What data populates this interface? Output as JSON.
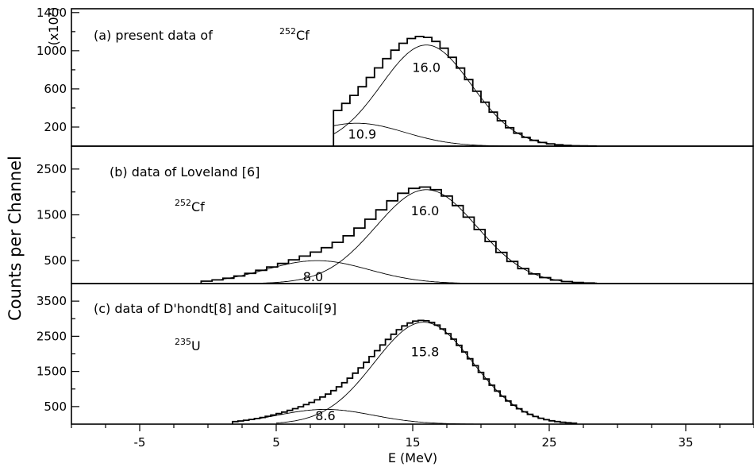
{
  "figure": {
    "ylabel": "Counts per Channel",
    "xlabel": "E (MeV)",
    "scale_note": "(x10²)"
  },
  "chart_data": [
    {
      "type": "line",
      "panel_label": "(a) present data of",
      "isotope": {
        "mass": "252",
        "symbol": "Cf"
      },
      "title": "(a) present data of ²⁵²Cf",
      "xlim": [
        -10,
        40
      ],
      "ylim": [
        0,
        1440
      ],
      "yticks": [
        200,
        600,
        1000,
        1400
      ],
      "yticklabels": [
        "200",
        "600",
        "1000",
        "1400"
      ],
      "grid": false,
      "histogram": {
        "x_start": 9.2,
        "x_end": 28.5,
        "bin_width": 0.6,
        "components": [
          {
            "amplitude": 1060,
            "center": 16.0,
            "sigma": 3.3
          },
          {
            "amplitude": 240,
            "center": 10.9,
            "sigma": 3.5
          }
        ]
      },
      "series": [
        {
          "amplitude": 1060,
          "center": 16.0,
          "sigma": 3.3,
          "x_start": 9.2,
          "x_end": 27.0,
          "annotation": "16.0",
          "annotation_at": [
            16.0,
            820
          ]
        },
        {
          "amplitude": 240,
          "center": 10.9,
          "sigma": 3.5,
          "x_start": 9.2,
          "x_end": 24.0,
          "annotation": "10.9",
          "annotation_at": [
            11.3,
            120
          ]
        }
      ]
    },
    {
      "type": "line",
      "panel_label": "(b) data of Loveland [6]",
      "isotope": {
        "mass": "252",
        "symbol": "Cf"
      },
      "title": "(b) data of Loveland [6]",
      "xlim": [
        -10,
        40
      ],
      "ylim": [
        0,
        3000
      ],
      "yticks": [
        500,
        1500,
        2500
      ],
      "yticklabels": [
        "500",
        "1500",
        "2500"
      ],
      "grid": false,
      "histogram": {
        "x_start": -0.5,
        "x_end": 28.5,
        "bin_width": 0.8,
        "components": [
          {
            "amplitude": 2050,
            "center": 16.0,
            "sigma": 3.7
          },
          {
            "amplitude": 500,
            "center": 8.0,
            "sigma": 3.8
          }
        ]
      },
      "series": [
        {
          "amplitude": 2050,
          "center": 16.0,
          "sigma": 3.7,
          "x_start": 3.0,
          "x_end": 28.0,
          "annotation": "16.0",
          "annotation_at": [
            15.9,
            1580
          ]
        },
        {
          "amplitude": 500,
          "center": 8.0,
          "sigma": 3.8,
          "x_start": 1.0,
          "x_end": 20.0,
          "annotation": "8.0",
          "annotation_at": [
            7.7,
            140
          ]
        }
      ]
    },
    {
      "type": "line",
      "panel_label": "(c) data of D'hondt[8] and Caitucoli[9]",
      "isotope": {
        "mass": "235",
        "symbol": "U"
      },
      "title": "(c) data of D'hondt[8] and Caitucoli[9]",
      "xlim": [
        -10,
        40
      ],
      "ylim": [
        0,
        4000
      ],
      "yticks": [
        500,
        1500,
        2500,
        3500
      ],
      "yticklabels": [
        "500",
        "1500",
        "2500",
        "3500"
      ],
      "xticks": [
        -5,
        5,
        15,
        25,
        35
      ],
      "xticklabels": [
        "-5",
        "5",
        "15",
        "25",
        "35"
      ],
      "grid": false,
      "histogram": {
        "x_start": 1.8,
        "x_end": 27.0,
        "bin_width": 0.4,
        "components": [
          {
            "amplitude": 2900,
            "center": 15.8,
            "sigma": 3.6
          },
          {
            "amplitude": 420,
            "center": 8.6,
            "sigma": 3.5
          }
        ]
      },
      "series": [
        {
          "amplitude": 2900,
          "center": 15.8,
          "sigma": 3.6,
          "x_start": 5.0,
          "x_end": 27.0,
          "annotation": "15.8",
          "annotation_at": [
            15.9,
            2050
          ]
        },
        {
          "amplitude": 420,
          "center": 8.6,
          "sigma": 3.5,
          "x_start": 1.8,
          "x_end": 20.0,
          "annotation": "8.6",
          "annotation_at": [
            8.6,
            230
          ]
        }
      ]
    }
  ]
}
